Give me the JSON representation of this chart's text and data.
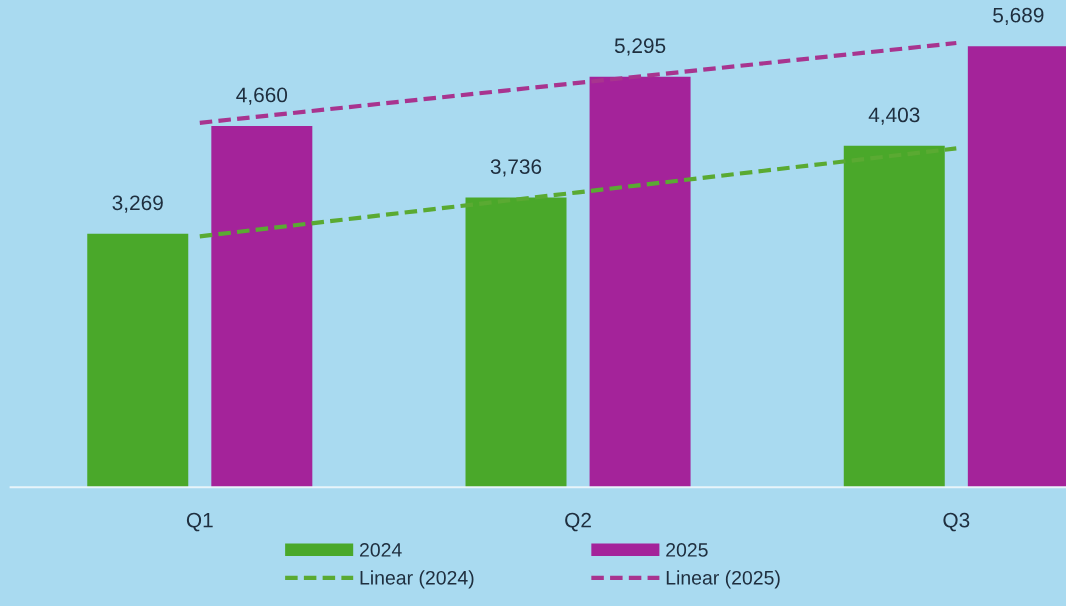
{
  "chart_data": {
    "type": "bar",
    "categories": [
      "Q1",
      "Q2",
      "Q3"
    ],
    "series": [
      {
        "name": "2024",
        "color": "#4aa82a",
        "values": [
          3269,
          3736,
          4403
        ],
        "value_labels": [
          "3,269",
          "3,736",
          "4,403"
        ]
      },
      {
        "name": "2025",
        "color": "#a4239a",
        "values": [
          4660,
          5295,
          5689
        ],
        "value_labels": [
          "4,660",
          "5,295",
          "5,689"
        ]
      },
      {
        "name": "Linear (2024)",
        "type": "line",
        "line_style": "dashed",
        "color": "#5aaa32",
        "values": [
          3236,
          3803,
          4370
        ]
      },
      {
        "name": "Linear (2025)",
        "type": "line",
        "line_style": "dashed",
        "color": "#a8348f",
        "values": [
          4700,
          5215,
          5729
        ]
      }
    ],
    "legend": "bottom"
  }
}
